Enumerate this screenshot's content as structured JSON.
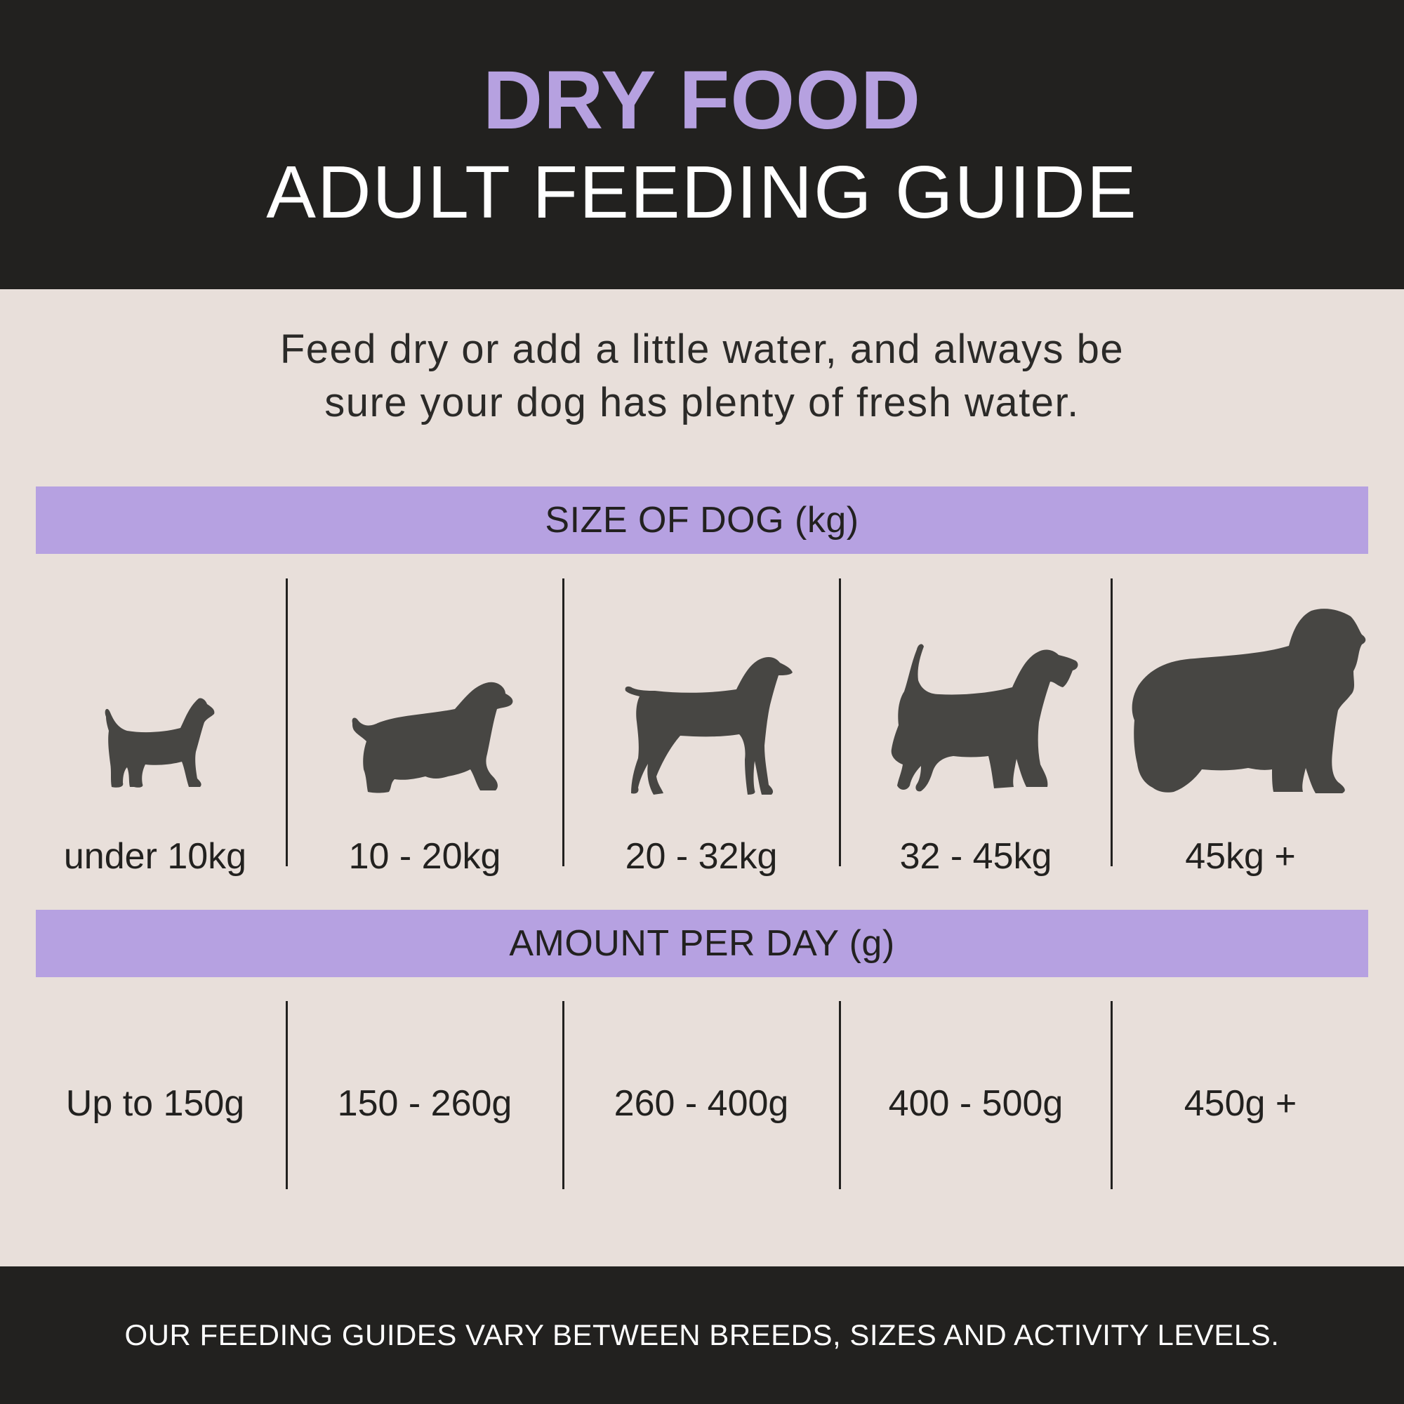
{
  "header": {
    "title": "DRY FOOD",
    "subtitle": "ADULT FEEDING GUIDE"
  },
  "intro": {
    "line1": "Feed dry or add a little water, and always be",
    "line2": "sure your dog has plenty of fresh water."
  },
  "size_band": {
    "label": "SIZE OF DOG (kg)"
  },
  "amount_band": {
    "label": "AMOUNT PER DAY (g)"
  },
  "sizes": [
    {
      "label": "under 10kg",
      "icon": "small-terrier-icon"
    },
    {
      "label": "10 - 20kg",
      "icon": "spaniel-icon"
    },
    {
      "label": "20 - 32kg",
      "icon": "pointer-icon"
    },
    {
      "label": "32 - 45kg",
      "icon": "schnauzer-icon"
    },
    {
      "label": "45kg +",
      "icon": "sheepdog-icon"
    }
  ],
  "amounts": [
    {
      "label": "Up to 150g"
    },
    {
      "label": "150 - 260g"
    },
    {
      "label": "260 - 400g"
    },
    {
      "label": "400 - 500g"
    },
    {
      "label": "450g +"
    }
  ],
  "footer": {
    "text": "OUR FEEDING GUIDES VARY BETWEEN BREEDS, SIZES AND ACTIVITY LEVELS."
  },
  "colors": {
    "dark": "#22211f",
    "accent": "#b6a1e0",
    "background": "#e8dfda",
    "dog": "#474643"
  }
}
